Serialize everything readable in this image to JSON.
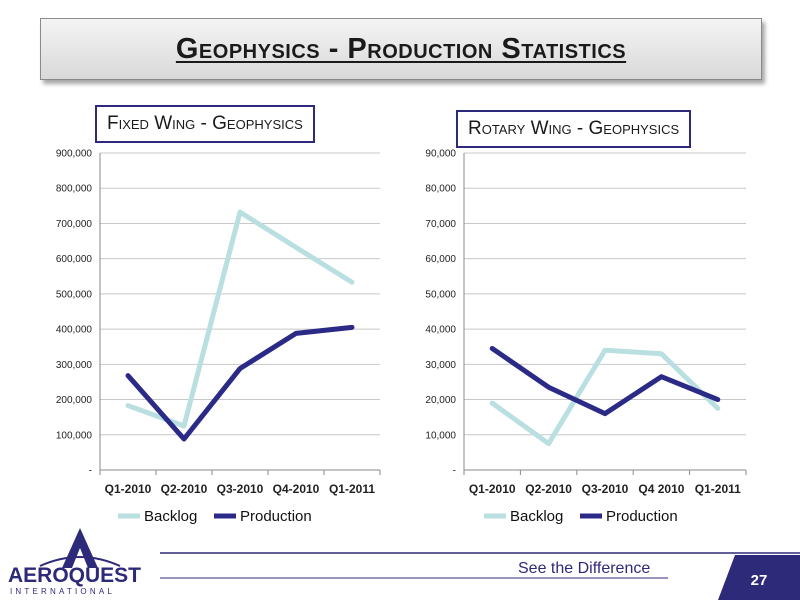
{
  "slide": {
    "title": "Geophysics - Production Statistics",
    "footer_tagline": "See the Difference",
    "page_number": "27",
    "logo_text": "AEROQUEST",
    "logo_subtext": "INTERNATIONAL",
    "colors": {
      "backlog": "#b9dfe1",
      "production": "#2b2a87",
      "accent": "#2e2a7a"
    }
  },
  "chart_data": [
    {
      "type": "line",
      "title": "Fixed Wing - Geophysics",
      "categories": [
        "Q1-2010",
        "Q2-2010",
        "Q3-2010",
        "Q4-2010",
        "Q1-2011"
      ],
      "series": [
        {
          "name": "Backlog",
          "values": [
            183000,
            125000,
            732000,
            632000,
            533000
          ]
        },
        {
          "name": "Production",
          "values": [
            268000,
            88000,
            288000,
            388000,
            405000
          ]
        }
      ],
      "ylim": [
        0,
        900000
      ],
      "yticks": [
        0,
        100000,
        200000,
        300000,
        400000,
        500000,
        600000,
        700000,
        800000,
        900000
      ],
      "ytick_labels": [
        "-",
        "100,000",
        "200,000",
        "300,000",
        "400,000",
        "500,000",
        "600,000",
        "700,000",
        "800,000",
        "900,000"
      ],
      "grid": true,
      "legend": "bottom"
    },
    {
      "type": "line",
      "title": "Rotary Wing - Geophysics",
      "categories": [
        "Q1-2010",
        "Q2-2010",
        "Q3-2010",
        "Q4 2010",
        "Q1-2011"
      ],
      "series": [
        {
          "name": "Backlog",
          "values": [
            19000,
            7500,
            34000,
            33000,
            17500
          ]
        },
        {
          "name": "Production",
          "values": [
            34500,
            23500,
            16000,
            26500,
            20000
          ]
        }
      ],
      "ylim": [
        0,
        90000
      ],
      "yticks": [
        0,
        10000,
        20000,
        30000,
        40000,
        50000,
        60000,
        70000,
        80000,
        90000
      ],
      "ytick_labels": [
        "-",
        "10,000",
        "20,000",
        "30,000",
        "40,000",
        "50,000",
        "60,000",
        "70,000",
        "80,000",
        "90,000"
      ],
      "grid": true,
      "legend": "bottom"
    }
  ]
}
